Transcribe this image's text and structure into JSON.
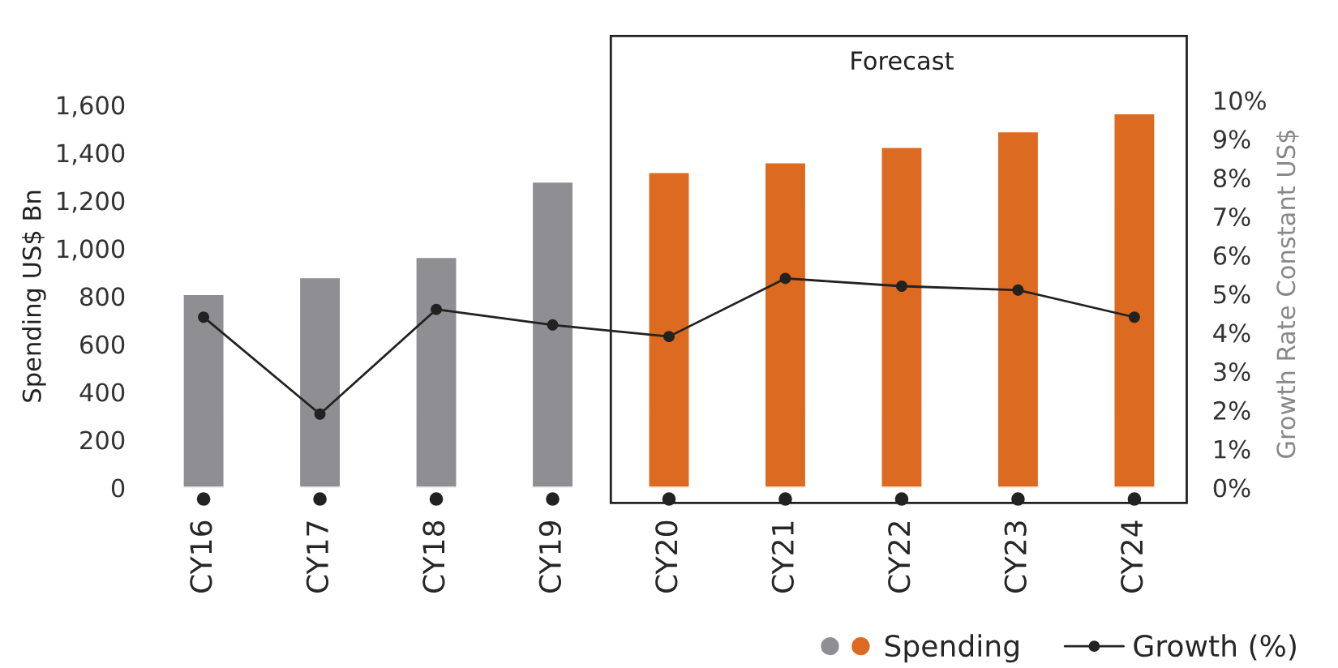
{
  "chart_data": {
    "type": "bar",
    "categories": [
      "CY16",
      "CY17",
      "CY18",
      "CY19",
      "CY20",
      "CY21",
      "CY22",
      "CY23",
      "CY24"
    ],
    "series": [
      {
        "name": "Spending",
        "colors": [
          "#8e8e93",
          "#8e8e93",
          "#8e8e93",
          "#8e8e93",
          "#dc6a20",
          "#dc6a20",
          "#dc6a20",
          "#dc6a20",
          "#dc6a20"
        ],
        "values": [
          810,
          880,
          965,
          1280,
          1320,
          1360,
          1425,
          1490,
          1565
        ]
      },
      {
        "name": "Growth (%)",
        "type": "line",
        "axis": "y2",
        "color": "#222222",
        "marker": "circle",
        "values": [
          4.4,
          1.9,
          4.6,
          4.2,
          3.9,
          5.4,
          5.2,
          5.1,
          4.4
        ]
      }
    ],
    "ylabel": "Spending US$ Bn",
    "y2label": "Growth Rate Constant US$",
    "ylim": [
      0,
      1600
    ],
    "yticks": [
      {
        "value": 0,
        "label": "0"
      },
      {
        "value": 200,
        "label": "200"
      },
      {
        "value": 400,
        "label": "400"
      },
      {
        "value": 600,
        "label": "600"
      },
      {
        "value": 800,
        "label": "800"
      },
      {
        "value": 1000,
        "label": "1,000"
      },
      {
        "value": 1200,
        "label": "1,200"
      },
      {
        "value": 1400,
        "label": "1,400"
      },
      {
        "value": 1600,
        "label": "1,600"
      }
    ],
    "y2lim": [
      0,
      10
    ],
    "y2ticks": [
      {
        "value": 0,
        "label": "0%"
      },
      {
        "value": 1,
        "label": "1%"
      },
      {
        "value": 2,
        "label": "2%"
      },
      {
        "value": 3,
        "label": "3%"
      },
      {
        "value": 4,
        "label": "4%"
      },
      {
        "value": 5,
        "label": "5%"
      },
      {
        "value": 6,
        "label": "6%"
      },
      {
        "value": 7,
        "label": "7%"
      },
      {
        "value": 8,
        "label": "8%"
      },
      {
        "value": 9,
        "label": "9%"
      },
      {
        "value": 10,
        "label": "10%"
      }
    ],
    "annotations": [
      "Forecast"
    ],
    "grid": false,
    "legend": "bottom right"
  }
}
